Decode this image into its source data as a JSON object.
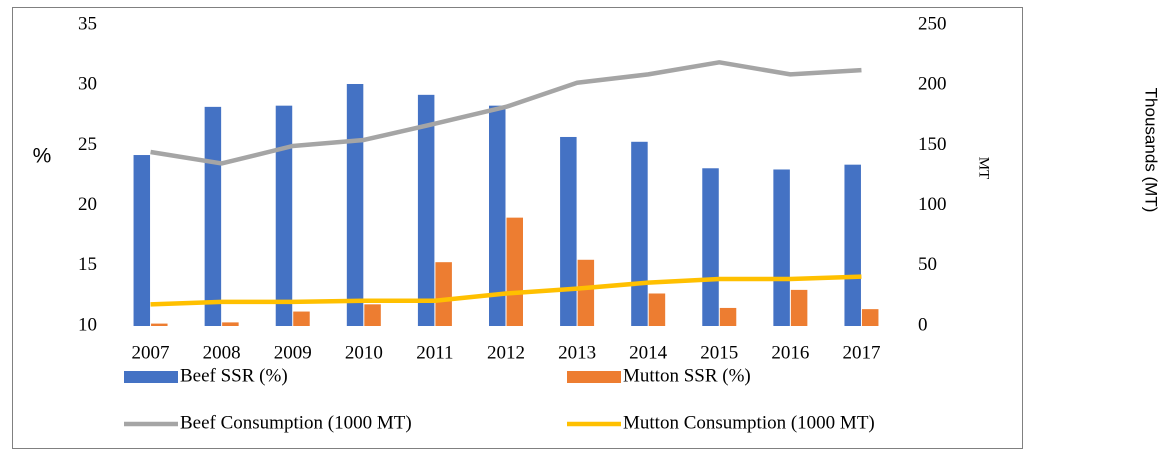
{
  "chart_data": {
    "type": "bar",
    "categories": [
      "2007",
      "2008",
      "2009",
      "2010",
      "2011",
      "2012",
      "2013",
      "2014",
      "2015",
      "2016",
      "2017"
    ],
    "series": [
      {
        "name": "Beef SSR (%)",
        "type": "bar",
        "color": "#4472c4",
        "values": [
          24.2,
          28.2,
          28.3,
          30.1,
          29.2,
          28.3,
          25.7,
          25.3,
          23.1,
          23.0,
          23.4
        ]
      },
      {
        "name": "Mutton SSR (%)",
        "type": "bar",
        "color": "#ed7d31",
        "values": [
          10.2,
          10.3,
          11.2,
          11.8,
          15.3,
          19.0,
          15.5,
          12.7,
          11.5,
          13.0,
          11.4
        ]
      },
      {
        "name": "Beef Consumption (1000 MT)",
        "type": "line",
        "axis": "y2",
        "color": "#a5a5a5",
        "values": [
          144.5,
          135,
          149.5,
          154.5,
          168,
          182,
          202,
          209,
          219,
          209,
          212.5
        ]
      },
      {
        "name": "Mutton Consumption (1000 MT)",
        "type": "line",
        "axis": "y2",
        "color": "#ffc000",
        "values": [
          18,
          20,
          20,
          21,
          21,
          27,
          31,
          36,
          39,
          39,
          41
        ]
      }
    ],
    "ylabel": "%",
    "y2label": "MT",
    "annotation": "Thousands (MT)",
    "ylim": [
      10,
      35
    ],
    "yticks": [
      10,
      15,
      20,
      25,
      30,
      35
    ],
    "y2lim": [
      0,
      250
    ],
    "y2ticks": [
      0,
      50,
      100,
      150,
      200,
      250
    ],
    "grid": false,
    "legend": "bottom"
  }
}
